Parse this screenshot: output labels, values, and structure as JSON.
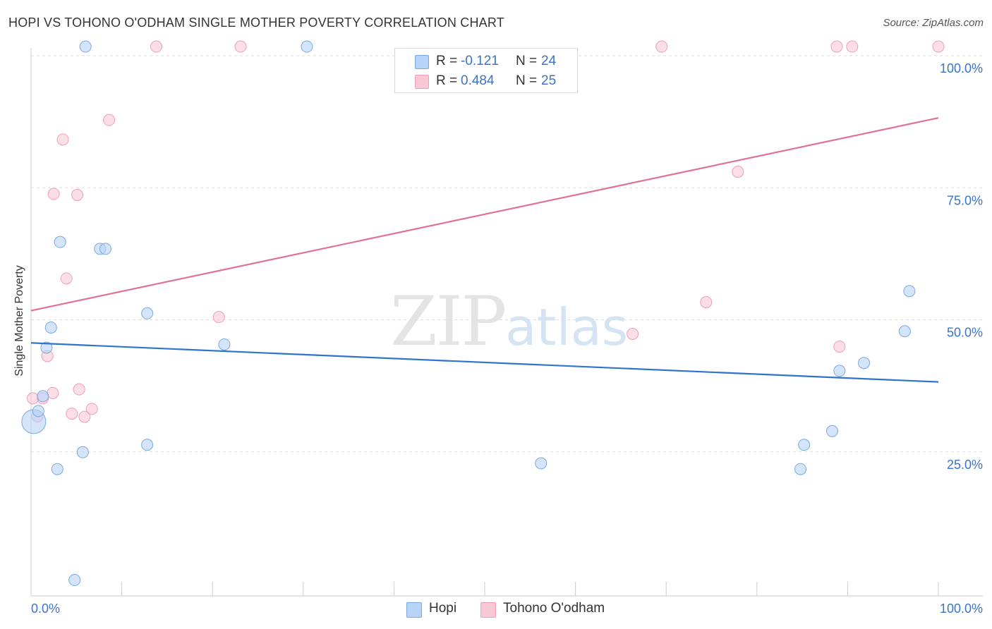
{
  "title": "HOPI VS TOHONO O'ODHAM SINGLE MOTHER POVERTY CORRELATION CHART",
  "source": "Source: ZipAtlas.com",
  "watermark": {
    "zip": "ZIP",
    "atlas": "atlas"
  },
  "colors": {
    "hopi_fill": "#b8d3f5",
    "hopi_stroke": "#7aa8e0",
    "hopi_line": "#2f74cc",
    "tohono_fill": "#f9c8d6",
    "tohono_stroke": "#ee9fb5",
    "tohono_line": "#e0709a",
    "grid": "#dddddd",
    "tick_label": "#3a74c9"
  },
  "stats_legend": [
    {
      "r_label": "R =",
      "r_value": "-0.121",
      "n_label": "N =",
      "n_value": "24"
    },
    {
      "r_label": "R =",
      "r_value": "0.484",
      "n_label": "N =",
      "n_value": "25"
    }
  ],
  "chart_data": {
    "type": "scatter",
    "title": "HOPI VS TOHONO O'ODHAM SINGLE MOTHER POVERTY CORRELATION CHART",
    "xlabel": "",
    "ylabel": "Single Mother Poverty",
    "xlim": [
      0,
      100
    ],
    "ylim": [
      0,
      100
    ],
    "x_tick_labels": [
      "0.0%",
      "100.0%"
    ],
    "y_ticks": [
      25,
      50,
      75,
      100
    ],
    "y_tick_labels": [
      "25.0%",
      "50.0%",
      "75.0%",
      "100.0%"
    ],
    "grid": true,
    "legend_position": "bottom",
    "series": [
      {
        "name": "Hopi",
        "trend": {
          "x": [
            0,
            100
          ],
          "y": [
            47.9,
            40.5
          ]
        },
        "points": [
          {
            "x": 0.3,
            "y": 33.0,
            "big": true
          },
          {
            "x": 0.8,
            "y": 35.0
          },
          {
            "x": 1.3,
            "y": 37.8
          },
          {
            "x": 1.7,
            "y": 47.0
          },
          {
            "x": 2.2,
            "y": 50.8
          },
          {
            "x": 2.9,
            "y": 24.0
          },
          {
            "x": 3.2,
            "y": 67.0
          },
          {
            "x": 4.8,
            "y": 3.0
          },
          {
            "x": 5.7,
            "y": 27.2
          },
          {
            "x": 6.0,
            "y": 104.0
          },
          {
            "x": 7.6,
            "y": 65.7
          },
          {
            "x": 8.2,
            "y": 65.7
          },
          {
            "x": 12.8,
            "y": 28.6
          },
          {
            "x": 12.8,
            "y": 53.5
          },
          {
            "x": 21.3,
            "y": 47.6
          },
          {
            "x": 30.4,
            "y": 104.0
          },
          {
            "x": 56.2,
            "y": 25.1
          },
          {
            "x": 84.8,
            "y": 24.0
          },
          {
            "x": 85.2,
            "y": 28.6
          },
          {
            "x": 88.3,
            "y": 31.2
          },
          {
            "x": 89.1,
            "y": 42.6
          },
          {
            "x": 91.8,
            "y": 44.1
          },
          {
            "x": 96.3,
            "y": 50.1
          },
          {
            "x": 96.8,
            "y": 57.7
          }
        ]
      },
      {
        "name": "Tohono O'odham",
        "trend": {
          "x": [
            0,
            100
          ],
          "y": [
            54.0,
            90.5
          ]
        },
        "points": [
          {
            "x": 0.2,
            "y": 37.4
          },
          {
            "x": 0.7,
            "y": 34.0
          },
          {
            "x": 1.3,
            "y": 37.4
          },
          {
            "x": 1.8,
            "y": 45.4
          },
          {
            "x": 2.4,
            "y": 38.4
          },
          {
            "x": 2.5,
            "y": 76.1
          },
          {
            "x": 3.5,
            "y": 86.4
          },
          {
            "x": 3.9,
            "y": 60.1
          },
          {
            "x": 4.5,
            "y": 34.5
          },
          {
            "x": 5.1,
            "y": 75.9
          },
          {
            "x": 5.3,
            "y": 39.1
          },
          {
            "x": 5.9,
            "y": 33.9
          },
          {
            "x": 6.7,
            "y": 35.4
          },
          {
            "x": 8.6,
            "y": 90.1
          },
          {
            "x": 13.8,
            "y": 104.0
          },
          {
            "x": 20.7,
            "y": 52.8
          },
          {
            "x": 23.1,
            "y": 104.0
          },
          {
            "x": 69.5,
            "y": 104.0
          },
          {
            "x": 66.3,
            "y": 49.6
          },
          {
            "x": 74.4,
            "y": 55.6
          },
          {
            "x": 77.9,
            "y": 80.3
          },
          {
            "x": 88.8,
            "y": 104.0
          },
          {
            "x": 89.1,
            "y": 47.2
          },
          {
            "x": 90.5,
            "y": 104.0
          },
          {
            "x": 100.0,
            "y": 104.0
          }
        ]
      }
    ]
  }
}
